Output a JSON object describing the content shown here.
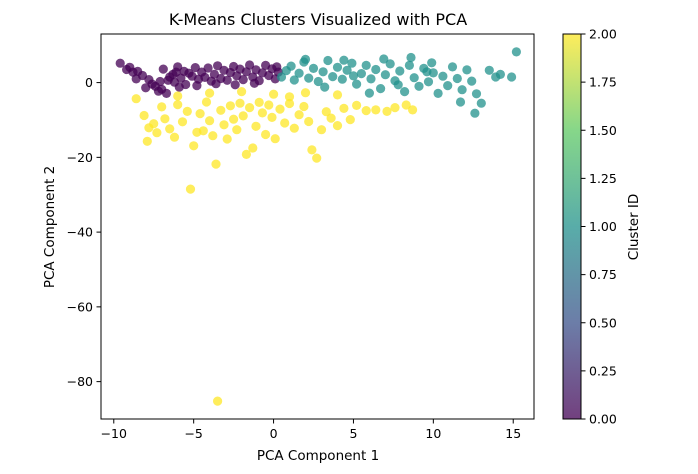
{
  "chart_data": {
    "type": "scatter",
    "title": "K-Means Clusters Visualized with PCA",
    "xlabel": "PCA Component 1",
    "ylabel": "PCA Component 2",
    "xlim": [
      -10.8,
      16.3
    ],
    "ylim": [
      -90.0,
      13.0
    ],
    "xticks": [
      -10,
      -5,
      0,
      5,
      10,
      15
    ],
    "yticks": [
      0,
      -20,
      -40,
      -60,
      -80
    ],
    "xtick_labels": [
      "−10",
      "−5",
      "0",
      "5",
      "10",
      "15"
    ],
    "ytick_labels": [
      "0",
      "−20",
      "−40",
      "−60",
      "−80"
    ],
    "grid": false,
    "marker_alpha": 0.75,
    "colorbar": {
      "label": "Cluster ID",
      "range": [
        0.0,
        2.0
      ],
      "ticks": [
        0.0,
        0.25,
        0.5,
        0.75,
        1.0,
        1.25,
        1.5,
        1.75,
        2.0
      ],
      "tick_labels": [
        "0.00",
        "0.25",
        "0.50",
        "0.75",
        "1.00",
        "1.25",
        "1.50",
        "1.75",
        "2.00"
      ],
      "colormap": "viridis",
      "colors": [
        "#440154",
        "#3b528b",
        "#21918c",
        "#5ec962",
        "#fde725"
      ]
    },
    "series": [
      {
        "cluster": 0,
        "color": "#440154",
        "points": [
          [
            -9.6,
            5.2
          ],
          [
            -9.2,
            3.5
          ],
          [
            -9.0,
            4.1
          ],
          [
            -8.8,
            2.8
          ],
          [
            -8.5,
            3.0
          ],
          [
            -8.2,
            1.9
          ],
          [
            -8.0,
            -1.4
          ],
          [
            -7.8,
            0.8
          ],
          [
            -7.6,
            -0.4
          ],
          [
            -7.4,
            -1.0
          ],
          [
            -7.2,
            -2.3
          ],
          [
            -7.0,
            -1.8
          ],
          [
            -6.9,
            3.6
          ],
          [
            -6.7,
            -2.9
          ],
          [
            -6.5,
            1.5
          ],
          [
            -6.3,
            2.2
          ],
          [
            -6.2,
            0.1
          ],
          [
            -6.0,
            4.2
          ],
          [
            -5.8,
            1.2
          ],
          [
            -5.6,
            3.0
          ],
          [
            -5.5,
            -0.5
          ],
          [
            -5.3,
            2.5
          ],
          [
            -5.1,
            1.7
          ],
          [
            -4.9,
            4.0
          ],
          [
            -4.7,
            0.9
          ],
          [
            -4.5,
            2.8
          ],
          [
            -4.3,
            1.4
          ],
          [
            -4.1,
            3.9
          ],
          [
            -3.9,
            0.4
          ],
          [
            -3.7,
            2.2
          ],
          [
            -3.5,
            4.5
          ],
          [
            -3.3,
            1.1
          ],
          [
            -3.1,
            3.3
          ],
          [
            -2.9,
            0.6
          ],
          [
            -2.7,
            2.7
          ],
          [
            -2.5,
            4.3
          ],
          [
            -2.3,
            1.8
          ],
          [
            -2.1,
            3.6
          ],
          [
            -1.9,
            0.8
          ],
          [
            -1.7,
            2.9
          ],
          [
            -1.5,
            4.7
          ],
          [
            -1.3,
            1.5
          ],
          [
            -1.1,
            3.4
          ],
          [
            -0.9,
            0.5
          ],
          [
            -0.7,
            2.6
          ],
          [
            -0.5,
            4.6
          ],
          [
            -0.3,
            1.9
          ],
          [
            -0.1,
            3.7
          ],
          [
            0.1,
            1.0
          ],
          [
            0.3,
            2.8
          ],
          [
            -6.6,
            0.6
          ],
          [
            -5.9,
            -1.2
          ],
          [
            -4.8,
            -0.8
          ],
          [
            -3.6,
            -0.3
          ],
          [
            -2.4,
            -0.6
          ],
          [
            -1.2,
            -0.2
          ],
          [
            0.2,
            4.2
          ],
          [
            -8.6,
            1.0
          ],
          [
            -7.1,
            0.3
          ],
          [
            -6.1,
            2.8
          ]
        ]
      },
      {
        "cluster": 1,
        "color": "#21918c",
        "points": [
          [
            0.5,
            1.5
          ],
          [
            0.8,
            3.2
          ],
          [
            1.1,
            4.4
          ],
          [
            1.3,
            0.7
          ],
          [
            1.6,
            2.5
          ],
          [
            1.9,
            5.5
          ],
          [
            2.2,
            1.2
          ],
          [
            2.5,
            3.8
          ],
          [
            2.8,
            0.3
          ],
          [
            3.1,
            2.9
          ],
          [
            3.4,
            5.9
          ],
          [
            3.7,
            1.6
          ],
          [
            4.0,
            4.1
          ],
          [
            4.3,
            0.9
          ],
          [
            4.6,
            3.3
          ],
          [
            4.9,
            5.2
          ],
          [
            5.2,
            -0.4
          ],
          [
            5.5,
            2.4
          ],
          [
            5.8,
            4.6
          ],
          [
            6.1,
            1.0
          ],
          [
            6.4,
            3.5
          ],
          [
            6.7,
            -1.6
          ],
          [
            7.0,
            2.1
          ],
          [
            7.3,
            5.0
          ],
          [
            7.6,
            0.5
          ],
          [
            7.9,
            3.1
          ],
          [
            8.2,
            -2.4
          ],
          [
            8.5,
            4.6
          ],
          [
            8.8,
            1.3
          ],
          [
            9.1,
            -1.0
          ],
          [
            9.4,
            3.8
          ],
          [
            9.7,
            0.2
          ],
          [
            10.0,
            2.6
          ],
          [
            10.3,
            -2.9
          ],
          [
            10.6,
            1.7
          ],
          [
            10.9,
            -0.8
          ],
          [
            11.2,
            4.2
          ],
          [
            11.5,
            1.1
          ],
          [
            11.8,
            -1.9
          ],
          [
            12.1,
            3.4
          ],
          [
            12.4,
            0.4
          ],
          [
            12.7,
            -3.0
          ],
          [
            13.0,
            -5.5
          ],
          [
            12.6,
            -8.2
          ],
          [
            13.5,
            3.3
          ],
          [
            13.9,
            1.5
          ],
          [
            14.2,
            2.2
          ],
          [
            14.9,
            1.5
          ],
          [
            15.2,
            8.2
          ],
          [
            8.6,
            6.7
          ],
          [
            6.9,
            6.3
          ],
          [
            4.4,
            6.0
          ],
          [
            2.0,
            6.2
          ],
          [
            9.9,
            5.3
          ],
          [
            11.7,
            -5.2
          ],
          [
            6.0,
            -2.8
          ],
          [
            3.2,
            -1.2
          ],
          [
            5.0,
            1.8
          ],
          [
            7.8,
            -0.6
          ],
          [
            9.6,
            2.9
          ]
        ]
      },
      {
        "cluster": 2,
        "color": "#fde725",
        "points": [
          [
            -8.6,
            -4.3
          ],
          [
            -8.1,
            -8.8
          ],
          [
            -7.9,
            -15.7
          ],
          [
            -7.8,
            -12.1
          ],
          [
            -7.5,
            -11.0
          ],
          [
            -7.3,
            -13.4
          ],
          [
            -7.0,
            -6.5
          ],
          [
            -6.8,
            -9.7
          ],
          [
            -6.5,
            -12.4
          ],
          [
            -6.2,
            -14.6
          ],
          [
            -6.0,
            -5.9
          ],
          [
            -5.7,
            -10.5
          ],
          [
            -5.4,
            -7.7
          ],
          [
            -5.2,
            -28.5
          ],
          [
            -5.0,
            -16.9
          ],
          [
            -4.8,
            -13.3
          ],
          [
            -4.6,
            -8.3
          ],
          [
            -4.4,
            -12.9
          ],
          [
            -4.2,
            -5.2
          ],
          [
            -4.0,
            -10.2
          ],
          [
            -3.8,
            -14.2
          ],
          [
            -3.6,
            -21.8
          ],
          [
            -3.5,
            -85.2
          ],
          [
            -3.3,
            -7.4
          ],
          [
            -3.1,
            -11.3
          ],
          [
            -2.9,
            -15.1
          ],
          [
            -2.7,
            -6.2
          ],
          [
            -2.5,
            -9.8
          ],
          [
            -2.3,
            -12.6
          ],
          [
            -2.1,
            -5.5
          ],
          [
            -1.9,
            -8.9
          ],
          [
            -1.7,
            -19.2
          ],
          [
            -1.5,
            -6.7
          ],
          [
            -1.3,
            -17.5
          ],
          [
            -1.1,
            -11.7
          ],
          [
            -0.9,
            -5.3
          ],
          [
            -0.7,
            -8.1
          ],
          [
            -0.5,
            -13.9
          ],
          [
            -0.3,
            -6.0
          ],
          [
            -0.1,
            -9.3
          ],
          [
            0.1,
            -15.0
          ],
          [
            0.4,
            -7.1
          ],
          [
            0.7,
            -10.8
          ],
          [
            1.0,
            -5.6
          ],
          [
            1.3,
            -12.2
          ],
          [
            1.6,
            -8.6
          ],
          [
            1.9,
            -6.4
          ],
          [
            2.2,
            -10.4
          ],
          [
            2.4,
            -18.0
          ],
          [
            2.7,
            -20.2
          ],
          [
            3.0,
            -12.6
          ],
          [
            3.3,
            -7.8
          ],
          [
            3.6,
            -9.5
          ],
          [
            4.0,
            -11.5
          ],
          [
            4.4,
            -6.9
          ],
          [
            4.8,
            -9.9
          ],
          [
            5.2,
            -6.1
          ],
          [
            5.8,
            -7.5
          ],
          [
            6.4,
            -7.3
          ],
          [
            7.1,
            -7.7
          ],
          [
            7.6,
            -6.7
          ],
          [
            8.3,
            -6.0
          ],
          [
            8.7,
            -7.3
          ],
          [
            -2.0,
            -2.4
          ],
          [
            0.0,
            -3.1
          ],
          [
            2.0,
            -2.7
          ],
          [
            4.0,
            -3.3
          ],
          [
            -4.0,
            -2.8
          ],
          [
            -6.0,
            -3.6
          ],
          [
            1.0,
            -3.8
          ]
        ]
      }
    ]
  }
}
